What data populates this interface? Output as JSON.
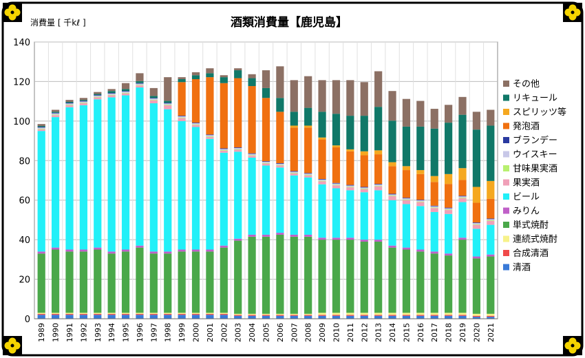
{
  "colors": {
    "frame": "#000000",
    "corner_petal": "#f5d400",
    "grid": "#bbbbbb"
  },
  "chart_data": {
    "type": "bar",
    "stacked": true,
    "title": "酒類消費量【鹿児島】",
    "ylabel": "消費量 [ 千kℓ ]",
    "ylim": [
      0,
      140
    ],
    "yticks": [
      0,
      20,
      40,
      60,
      80,
      100,
      120,
      140
    ],
    "grid": true,
    "legend_position": "right",
    "categories": [
      "1989",
      "1990",
      "1991",
      "1992",
      "1993",
      "1994",
      "1995",
      "1996",
      "1997",
      "1998",
      "1999",
      "2000",
      "2001",
      "2002",
      "2003",
      "2004",
      "2005",
      "2006",
      "2007",
      "2008",
      "2009",
      "2010",
      "2011",
      "2012",
      "2013",
      "2014",
      "2015",
      "2016",
      "2017",
      "2018",
      "2019",
      "2020",
      "2021"
    ],
    "series": [
      {
        "name": "清酒",
        "color": "#3a7ad8",
        "values": [
          2,
          2,
          2,
          2,
          2,
          2,
          2,
          2,
          2,
          2,
          2,
          2,
          2,
          2,
          1.5,
          1.5,
          1.5,
          1.5,
          1.5,
          1.5,
          1.5,
          1.5,
          1.5,
          1.5,
          1.5,
          1.5,
          1.5,
          1.5,
          1.5,
          1.5,
          1.5,
          1,
          1
        ]
      },
      {
        "name": "合成清酒",
        "color": "#f04a4a",
        "values": [
          0.5,
          0.5,
          0.5,
          0.5,
          0.5,
          0.5,
          0.5,
          0.5,
          0.5,
          0.5,
          0.5,
          0.5,
          0.5,
          0.5,
          0.5,
          0.5,
          0.5,
          0.5,
          0.5,
          0.5,
          0.5,
          0.5,
          0.5,
          0.5,
          0.5,
          0.5,
          0.5,
          0.5,
          0.5,
          0.5,
          0.5,
          0.5,
          0.5
        ]
      },
      {
        "name": "連続式焼酎",
        "color": "#f7f28a",
        "values": [
          0.5,
          0.5,
          0.5,
          0.5,
          0.5,
          0.5,
          0.5,
          0.5,
          0.5,
          0.5,
          0.5,
          0.5,
          0.5,
          0.5,
          0.5,
          0.5,
          0.5,
          0.5,
          0.5,
          0.5,
          1,
          1,
          1,
          1,
          1,
          1,
          1,
          1,
          1,
          1,
          1,
          1,
          1
        ]
      },
      {
        "name": "単式焼酎",
        "color": "#4aa84a",
        "values": [
          30,
          32,
          31,
          31,
          32,
          30,
          31,
          33,
          30,
          30,
          31,
          31,
          31,
          33,
          37,
          39,
          39,
          40,
          39,
          39,
          37,
          37,
          37,
          36,
          36,
          33,
          32,
          31,
          30,
          29,
          37,
          28,
          29
        ]
      },
      {
        "name": "みりん",
        "color": "#c060c8",
        "values": [
          1,
          1,
          1,
          1,
          1,
          1,
          1,
          1,
          1,
          1,
          1,
          1,
          1,
          1,
          1,
          1,
          1,
          1,
          1,
          1,
          1,
          1,
          1,
          1,
          1,
          1,
          1,
          1,
          1,
          1,
          1,
          1,
          1
        ]
      },
      {
        "name": "ビール",
        "color": "#22f0f8",
        "values": [
          61,
          66,
          72,
          73,
          75,
          78,
          78,
          80,
          75,
          72,
          65,
          62,
          56,
          47,
          44,
          39,
          35,
          33,
          30,
          29,
          27,
          25,
          24,
          24,
          25,
          23,
          22,
          22,
          20,
          20,
          18,
          14,
          15
        ]
      },
      {
        "name": "果実酒",
        "color": "#f0a0b8",
        "values": [
          0.8,
          1,
          1,
          1,
          1,
          1,
          1,
          1,
          1.5,
          2,
          1.5,
          1,
          1,
          1,
          1,
          1,
          1,
          1,
          1,
          1,
          1.5,
          1.5,
          1.5,
          1.5,
          2,
          2,
          2,
          2,
          2,
          2,
          2,
          2,
          2
        ]
      },
      {
        "name": "甘味果実酒",
        "color": "#b8f070",
        "values": [
          0.3,
          0.3,
          0.3,
          0.3,
          0.3,
          0.3,
          0.3,
          0.3,
          0.3,
          0.3,
          0.3,
          0.3,
          0.3,
          0.3,
          0.3,
          0.3,
          0.3,
          0.3,
          0.3,
          0.3,
          0.3,
          0.3,
          0.3,
          0.3,
          0.3,
          0.3,
          0.3,
          0.3,
          0.3,
          0.3,
          0.3,
          0.3,
          0.3
        ]
      },
      {
        "name": "ウイスキー",
        "color": "#c8c8e8",
        "values": [
          0.6,
          0.6,
          0.6,
          0.6,
          0.6,
          0.6,
          0.6,
          0.6,
          0.6,
          0.6,
          0.6,
          0.6,
          0.6,
          0.6,
          0.6,
          0.6,
          0.6,
          0.6,
          0.6,
          0.6,
          0.6,
          0.6,
          0.6,
          0.6,
          0.6,
          0.6,
          0.6,
          0.6,
          0.6,
          0.6,
          0.6,
          0.6,
          0.6
        ]
      },
      {
        "name": "ブランデー",
        "color": "#2a3aa0",
        "values": [
          0.3,
          0.3,
          0.3,
          0.3,
          0.3,
          0.3,
          0.3,
          0.3,
          0.3,
          0.3,
          0.3,
          0.3,
          0.3,
          0.3,
          0.3,
          0.3,
          0.3,
          0.3,
          0.3,
          0.3,
          0.3,
          0.3,
          0.3,
          0.3,
          0.3,
          0.3,
          0.3,
          0.3,
          0.3,
          0.3,
          0.3,
          0.3,
          0.3
        ]
      },
      {
        "name": "発泡酒",
        "color": "#f07010",
        "values": [
          0,
          0,
          0,
          0,
          0,
          0,
          0,
          0,
          0,
          0,
          17,
          22,
          29,
          33,
          35,
          34,
          32,
          26,
          22,
          23,
          20,
          18,
          17,
          16,
          15,
          14,
          14,
          13,
          12,
          12,
          8,
          10,
          10
        ]
      },
      {
        "name": "スピリッツ等",
        "color": "#f5a820",
        "values": [
          0,
          0,
          0,
          0,
          0,
          0,
          0,
          0,
          0,
          0,
          0,
          0,
          0,
          0,
          0,
          0,
          0,
          0,
          1,
          1,
          1,
          1,
          1,
          2,
          2,
          2,
          2,
          2,
          3,
          5,
          6,
          8,
          9
        ]
      },
      {
        "name": "リキュール",
        "color": "#107868",
        "values": [
          0.5,
          0.5,
          0.5,
          0.5,
          0.5,
          1,
          1,
          1,
          1,
          1,
          1.5,
          2,
          2,
          3,
          4,
          4,
          5,
          7,
          7,
          9,
          13,
          16,
          17,
          18,
          22,
          21,
          20,
          22,
          24,
          26,
          27,
          29,
          28
        ]
      },
      {
        "name": "その他",
        "color": "#8c7064",
        "values": [
          1,
          1,
          1,
          1,
          1,
          1,
          3,
          4,
          4,
          12,
          1,
          1.5,
          2.5,
          1,
          1,
          2,
          9,
          16,
          16,
          16,
          16,
          17,
          18,
          17,
          18,
          15,
          14,
          13,
          10,
          9,
          9,
          9,
          8
        ]
      }
    ]
  }
}
